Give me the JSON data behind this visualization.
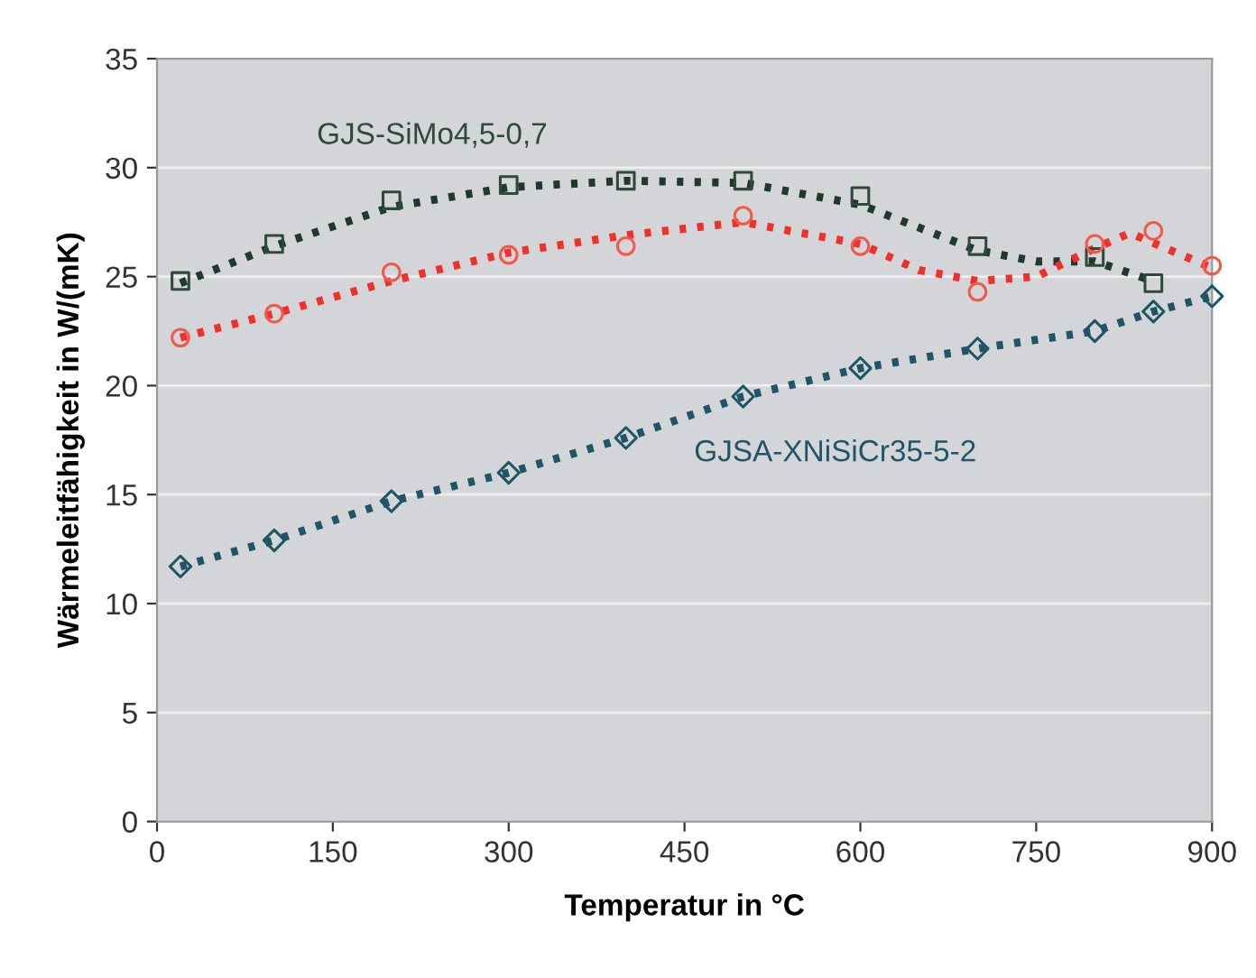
{
  "chart_data": {
    "type": "scatter",
    "xlabel": "Temperatur in °C",
    "ylabel": "Wärmeleitfähigkeit in W/(mK)",
    "xlim": [
      0,
      900
    ],
    "xticks": [
      0,
      150,
      300,
      450,
      600,
      750,
      900
    ],
    "ylim": [
      0,
      35
    ],
    "yticks": [
      0,
      5,
      10,
      15,
      20,
      25,
      30,
      35
    ],
    "grid": "y",
    "series": [
      {
        "type": "line",
        "line_style": "dotted",
        "marker": "none",
        "color": "#1f3a2a",
        "x": [
          20,
          100,
          200,
          300,
          400,
          500,
          600,
          700,
          750,
          800,
          850
        ],
        "values": [
          24.7,
          26.4,
          28.2,
          29.1,
          29.4,
          29.3,
          28.3,
          26.2,
          25.7,
          25.7,
          24.8
        ]
      },
      {
        "type": "line",
        "line_style": "dotted",
        "marker": "none",
        "color": "#f0302a",
        "x": [
          20,
          100,
          200,
          300,
          400,
          500,
          600,
          650,
          700,
          750,
          800,
          830,
          900
        ],
        "values": [
          22.2,
          23.3,
          24.8,
          26.1,
          26.9,
          27.5,
          26.5,
          25.3,
          24.8,
          25.0,
          26.3,
          27.0,
          25.4
        ]
      },
      {
        "type": "line",
        "line_style": "dotted",
        "marker": "none",
        "color": "#1e5668",
        "x": [
          20,
          100,
          200,
          300,
          400,
          500,
          600,
          700,
          800,
          850,
          900
        ],
        "values": [
          11.7,
          12.9,
          14.7,
          16.0,
          17.6,
          19.5,
          20.8,
          21.7,
          22.5,
          23.4,
          24.1
        ]
      },
      {
        "marker": "square",
        "color": "#2e4a38",
        "name": "GJS-SiMo4,5-0,7",
        "x": [
          20,
          100,
          200,
          300,
          400,
          500,
          600,
          700,
          800,
          850
        ],
        "values": [
          24.8,
          26.5,
          28.5,
          29.2,
          29.4,
          29.4,
          28.7,
          26.4,
          25.9,
          24.7
        ]
      },
      {
        "marker": "circle",
        "color": "#f05a4a",
        "x": [
          20,
          100,
          200,
          300,
          400,
          500,
          600,
          700,
          800,
          850,
          900
        ],
        "values": [
          22.2,
          23.3,
          25.2,
          26.0,
          26.4,
          27.8,
          26.4,
          24.3,
          26.5,
          27.1,
          25.5
        ]
      },
      {
        "marker": "diamond",
        "color": "#1e5668",
        "name": "GJSA-XNiSiCr35-5-2",
        "x": [
          20,
          100,
          200,
          300,
          400,
          500,
          600,
          700,
          800,
          850,
          900
        ],
        "values": [
          11.7,
          12.9,
          14.7,
          16.0,
          17.6,
          19.5,
          20.8,
          21.7,
          22.5,
          23.4,
          24.1
        ]
      }
    ]
  }
}
